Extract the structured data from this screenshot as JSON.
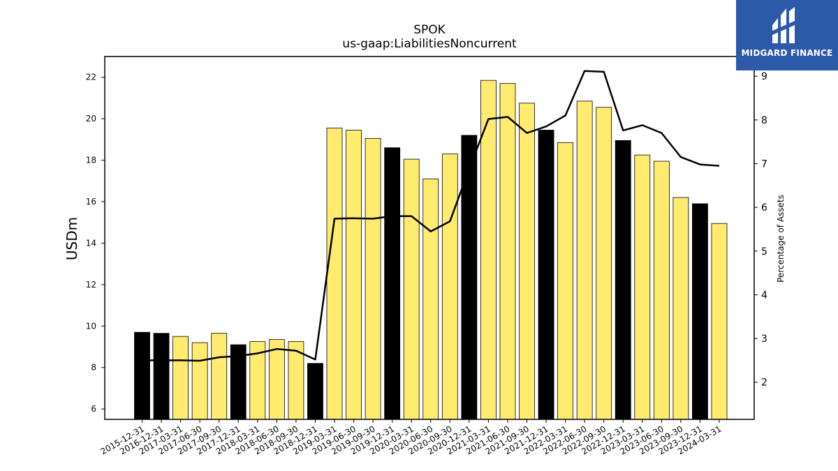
{
  "chart_data": {
    "type": "bar",
    "title": "SPOK",
    "subtitle": "us-gaap:LiabilitiesNoncurrent",
    "ylabel": "USDm",
    "y2label": "Percentage of Assets",
    "ylim": [
      5.5,
      23.0
    ],
    "y2lim": [
      1.15,
      9.45
    ],
    "yticks": [
      6,
      8,
      10,
      12,
      14,
      16,
      18,
      20,
      22
    ],
    "y2ticks": [
      2,
      3,
      4,
      5,
      6,
      7,
      8,
      9
    ],
    "grid": false,
    "categories": [
      "2015-12-31",
      "2016-12-31",
      "2017-03-31",
      "2017-06-30",
      "2017-09-30",
      "2017-12-31",
      "2018-03-31",
      "2018-06-30",
      "2018-09-30",
      "2018-12-31",
      "2019-03-31",
      "2019-06-30",
      "2019-09-30",
      "2019-12-31",
      "2020-03-31",
      "2020-06-30",
      "2020-09-30",
      "2020-12-31",
      "2021-03-31",
      "2021-06-30",
      "2021-09-30",
      "2021-12-31",
      "2022-03-31",
      "2022-06-30",
      "2022-09-30",
      "2022-12-31",
      "2023-03-31",
      "2023-06-30",
      "2023-09-30",
      "2023-12-31",
      "2024-03-31"
    ],
    "series": [
      {
        "type": "bar",
        "values": [
          9.7,
          9.65,
          9.5,
          9.2,
          9.65,
          9.1,
          9.25,
          9.35,
          9.25,
          8.2,
          19.55,
          19.45,
          19.05,
          18.6,
          18.05,
          17.1,
          18.3,
          19.2,
          21.85,
          21.7,
          20.75,
          19.45,
          18.85,
          20.85,
          20.55,
          18.95,
          18.25,
          17.95,
          16.2,
          15.9,
          14.95
        ],
        "annual": [
          true,
          true,
          false,
          false,
          false,
          true,
          false,
          false,
          false,
          true,
          false,
          false,
          false,
          true,
          false,
          false,
          false,
          true,
          false,
          false,
          false,
          true,
          false,
          false,
          false,
          true,
          false,
          false,
          false,
          true,
          false
        ]
      },
      {
        "type": "line",
        "axis": "right",
        "values": [
          2.5,
          2.5,
          2.5,
          2.49,
          2.57,
          2.6,
          2.66,
          2.76,
          2.72,
          2.52,
          5.74,
          5.75,
          5.74,
          5.8,
          5.8,
          5.45,
          5.68,
          6.88,
          8.02,
          8.07,
          7.7,
          7.85,
          8.1,
          9.12,
          9.1,
          7.76,
          7.88,
          7.7,
          7.15,
          6.98,
          6.95
        ]
      }
    ],
    "colors": {
      "annual_bar": "#000000",
      "quarter_bar": "#ffec6e",
      "line": "#000000"
    }
  },
  "logo": {
    "name": "MIDGARD FINANCE",
    "bg": "#2d5aa8"
  }
}
